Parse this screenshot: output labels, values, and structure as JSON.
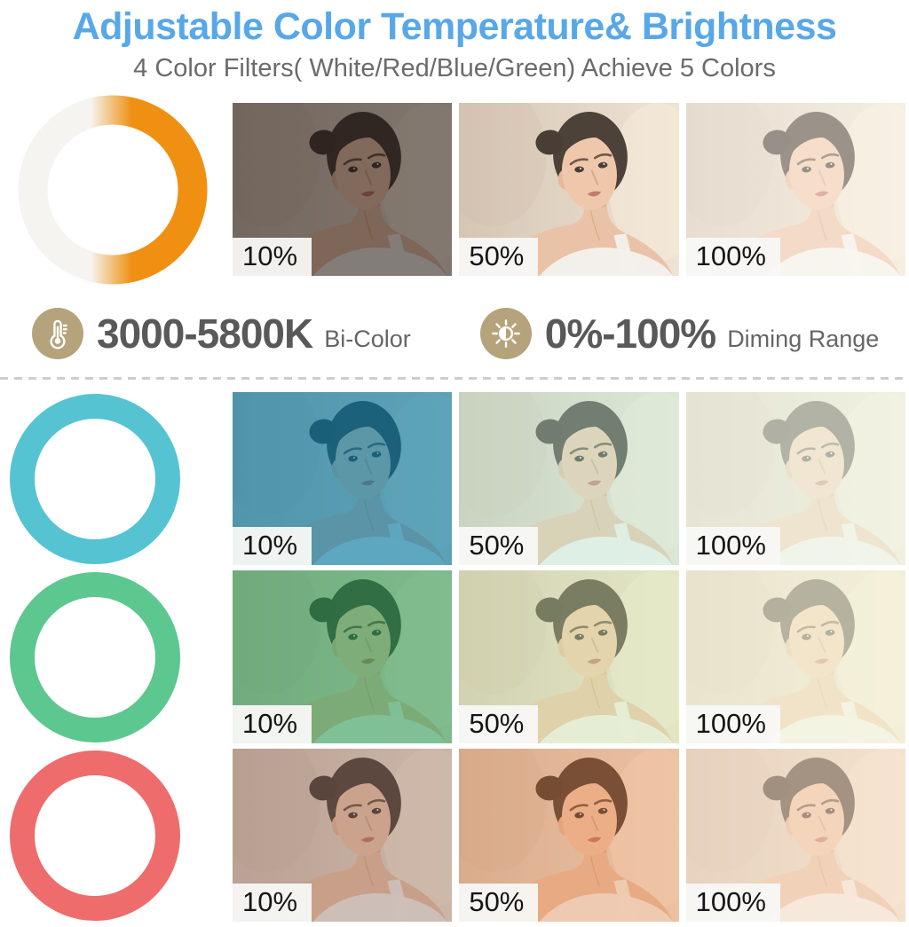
{
  "header": {
    "title": "Adjustable Color Temperature& Brightness",
    "subtitle": "4 Color Filters( White/Red/Blue/Green) Achieve 5 Colors",
    "title_color": "#58a8e8"
  },
  "specs": {
    "icon_bg": "#b5a37c",
    "color_temp": {
      "icon": "thermometer-icon",
      "value": "3000-5800K",
      "label": "Bi-Color"
    },
    "dimming": {
      "icon": "brightness-icon",
      "value": "0%-100%",
      "label": "Diming Range"
    }
  },
  "rings": {
    "bicolor": {
      "type": "bi-color",
      "left_color": "#f6f4f1",
      "right_color": "#ef9013"
    },
    "filters": [
      {
        "name": "blue",
        "color": "#55c3d2"
      },
      {
        "name": "green",
        "color": "#5cc78f"
      },
      {
        "name": "red",
        "color": "#ee6c6c"
      }
    ]
  },
  "grid": {
    "brightness_labels": [
      "10%",
      "50%",
      "100%"
    ],
    "rows": [
      {
        "id": "bi-color-white",
        "tiles": [
          {
            "label": "10%",
            "overlay": "rgba(50,40,36,0.58)"
          },
          {
            "label": "50%",
            "overlay": "rgba(250,230,205,0.15)"
          },
          {
            "label": "100%",
            "overlay": "rgba(253,247,238,0.52)"
          }
        ]
      },
      {
        "id": "blue-filter",
        "tiles": [
          {
            "label": "10%",
            "overlay": "rgba(16,128,168,0.66)"
          },
          {
            "label": "50%",
            "overlay": "rgba(198,236,214,0.45)"
          },
          {
            "label": "100%",
            "overlay": "rgba(240,246,230,0.68)"
          }
        ]
      },
      {
        "id": "green-filter",
        "tiles": [
          {
            "label": "10%",
            "overlay": "rgba(52,158,92,0.60)"
          },
          {
            "label": "50%",
            "overlay": "rgba(212,232,180,0.45)"
          },
          {
            "label": "100%",
            "overlay": "rgba(244,244,220,0.68)"
          }
        ]
      },
      {
        "id": "red-filter",
        "tiles": [
          {
            "label": "10%",
            "overlay": "rgba(156,120,108,0.42)"
          },
          {
            "label": "50%",
            "overlay": "rgba(232,142,88,0.40)"
          },
          {
            "label": "100%",
            "overlay": "rgba(248,224,202,0.58)"
          }
        ]
      }
    ]
  }
}
